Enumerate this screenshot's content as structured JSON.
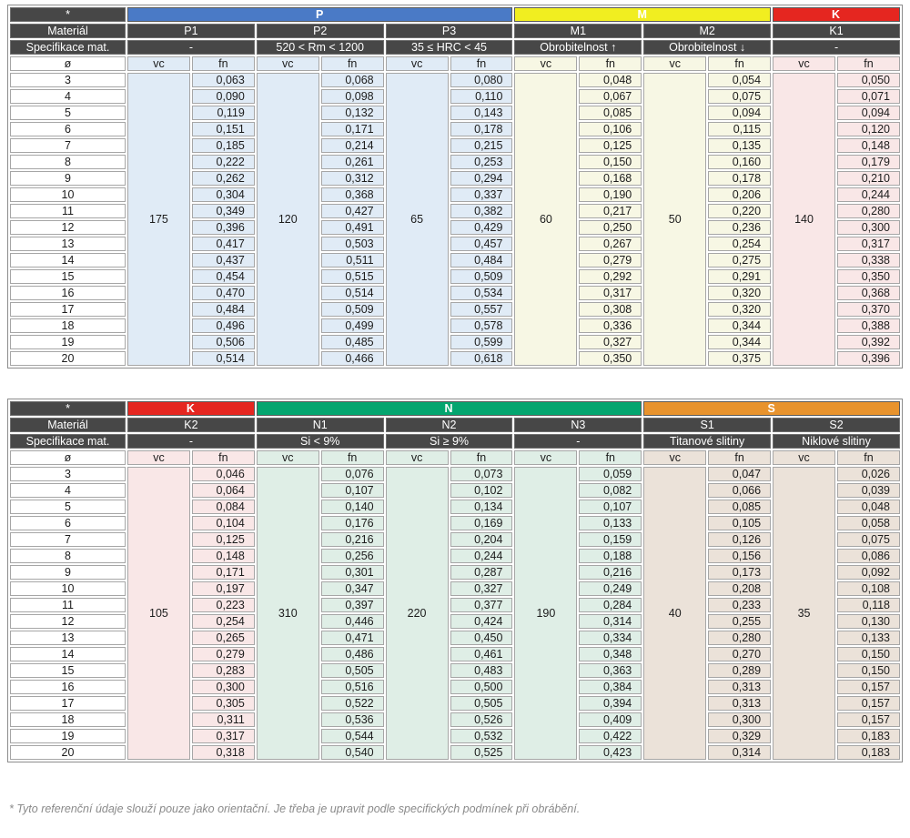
{
  "page": {
    "footnote": "* Tyto referenční údaje slouží pouze jako orientační. Je třeba je upravit podle specifických podmínek při obrábění."
  },
  "labels": {
    "star": "*",
    "material": "Materiál",
    "spec": "Specifikace mat.",
    "diameter": "ø",
    "vc": "vc",
    "fn": "fn"
  },
  "colors": {
    "header_dark": "#474747",
    "group_P": "#4a7ac6",
    "group_M": "#f1ee20",
    "group_K": "#e52620",
    "group_N": "#04a56f",
    "group_S": "#e8932d",
    "tint_P": "#e0ebf6",
    "tint_M": "#f7f7e4",
    "tint_K": "#f9e7e7",
    "tint_N": "#dfeee6",
    "tint_S": "#ebe2d9"
  },
  "tables": [
    {
      "groups": [
        {
          "label": "P",
          "color": "#4a7ac6",
          "cols": 3
        },
        {
          "label": "M",
          "color": "#f1ee20",
          "cols": 2
        },
        {
          "label": "K",
          "color": "#e52620",
          "cols": 1
        }
      ],
      "diameters": [
        "3",
        "4",
        "5",
        "6",
        "7",
        "8",
        "9",
        "10",
        "11",
        "12",
        "13",
        "14",
        "15",
        "16",
        "17",
        "18",
        "19",
        "20"
      ],
      "columns": [
        {
          "id": "P1",
          "spec": "-",
          "vc": "175",
          "tint": "#e0ebf6",
          "fn": [
            "0,063",
            "0,090",
            "0,119",
            "0,151",
            "0,185",
            "0,222",
            "0,262",
            "0,304",
            "0,349",
            "0,396",
            "0,417",
            "0,437",
            "0,454",
            "0,470",
            "0,484",
            "0,496",
            "0,506",
            "0,514"
          ]
        },
        {
          "id": "P2",
          "spec": "520 < Rm < 1200",
          "vc": "120",
          "tint": "#e0ebf6",
          "fn": [
            "0,068",
            "0,098",
            "0,132",
            "0,171",
            "0,214",
            "0,261",
            "0,312",
            "0,368",
            "0,427",
            "0,491",
            "0,503",
            "0,511",
            "0,515",
            "0,514",
            "0,509",
            "0,499",
            "0,485",
            "0,466"
          ]
        },
        {
          "id": "P3",
          "spec": "35 ≤ HRC < 45",
          "vc": "65",
          "tint": "#e0ebf6",
          "fn": [
            "0,080",
            "0,110",
            "0,143",
            "0,178",
            "0,215",
            "0,253",
            "0,294",
            "0,337",
            "0,382",
            "0,429",
            "0,457",
            "0,484",
            "0,509",
            "0,534",
            "0,557",
            "0,578",
            "0,599",
            "0,618"
          ]
        },
        {
          "id": "M1",
          "spec": "Obrobitelnost ↑",
          "vc": "60",
          "tint": "#f7f7e4",
          "fn": [
            "0,048",
            "0,067",
            "0,085",
            "0,106",
            "0,125",
            "0,150",
            "0,168",
            "0,190",
            "0,217",
            "0,250",
            "0,267",
            "0,279",
            "0,292",
            "0,317",
            "0,308",
            "0,336",
            "0,327",
            "0,350"
          ]
        },
        {
          "id": "M2",
          "spec": "Obrobitelnost ↓",
          "vc": "50",
          "tint": "#f7f7e4",
          "fn": [
            "0,054",
            "0,075",
            "0,094",
            "0,115",
            "0,135",
            "0,160",
            "0,178",
            "0,206",
            "0,220",
            "0,236",
            "0,254",
            "0,275",
            "0,291",
            "0,320",
            "0,320",
            "0,344",
            "0,344",
            "0,375"
          ]
        },
        {
          "id": "K1",
          "spec": "-",
          "vc": "140",
          "tint": "#f9e7e7",
          "fn": [
            "0,050",
            "0,071",
            "0,094",
            "0,120",
            "0,148",
            "0,179",
            "0,210",
            "0,244",
            "0,280",
            "0,300",
            "0,317",
            "0,338",
            "0,350",
            "0,368",
            "0,370",
            "0,388",
            "0,392",
            "0,396"
          ]
        }
      ]
    },
    {
      "groups": [
        {
          "label": "K",
          "color": "#e52620",
          "cols": 1
        },
        {
          "label": "N",
          "color": "#04a56f",
          "cols": 3
        },
        {
          "label": "S",
          "color": "#e8932d",
          "cols": 2
        }
      ],
      "diameters": [
        "3",
        "4",
        "5",
        "6",
        "7",
        "8",
        "9",
        "10",
        "11",
        "12",
        "13",
        "14",
        "15",
        "16",
        "17",
        "18",
        "19",
        "20"
      ],
      "columns": [
        {
          "id": "K2",
          "spec": "-",
          "vc": "105",
          "tint": "#f9e7e7",
          "fn": [
            "0,046",
            "0,064",
            "0,084",
            "0,104",
            "0,125",
            "0,148",
            "0,171",
            "0,197",
            "0,223",
            "0,254",
            "0,265",
            "0,279",
            "0,283",
            "0,300",
            "0,305",
            "0,311",
            "0,317",
            "0,318"
          ]
        },
        {
          "id": "N1",
          "spec": "Si < 9%",
          "vc": "310",
          "tint": "#dfeee6",
          "fn": [
            "0,076",
            "0,107",
            "0,140",
            "0,176",
            "0,216",
            "0,256",
            "0,301",
            "0,347",
            "0,397",
            "0,446",
            "0,471",
            "0,486",
            "0,505",
            "0,516",
            "0,522",
            "0,536",
            "0,544",
            "0,540"
          ]
        },
        {
          "id": "N2",
          "spec": "Si ≥ 9%",
          "vc": "220",
          "tint": "#dfeee6",
          "fn": [
            "0,073",
            "0,102",
            "0,134",
            "0,169",
            "0,204",
            "0,244",
            "0,287",
            "0,327",
            "0,377",
            "0,424",
            "0,450",
            "0,461",
            "0,483",
            "0,500",
            "0,505",
            "0,526",
            "0,532",
            "0,525"
          ]
        },
        {
          "id": "N3",
          "spec": "-",
          "vc": "190",
          "tint": "#dfeee6",
          "fn": [
            "0,059",
            "0,082",
            "0,107",
            "0,133",
            "0,159",
            "0,188",
            "0,216",
            "0,249",
            "0,284",
            "0,314",
            "0,334",
            "0,348",
            "0,363",
            "0,384",
            "0,394",
            "0,409",
            "0,422",
            "0,423"
          ]
        },
        {
          "id": "S1",
          "spec": "Titanové slitiny",
          "vc": "40",
          "tint": "#ebe2d9",
          "fn": [
            "0,047",
            "0,066",
            "0,085",
            "0,105",
            "0,126",
            "0,156",
            "0,173",
            "0,208",
            "0,233",
            "0,255",
            "0,280",
            "0,270",
            "0,289",
            "0,313",
            "0,313",
            "0,300",
            "0,329",
            "0,314"
          ]
        },
        {
          "id": "S2",
          "spec": "Niklové slitiny",
          "vc": "35",
          "tint": "#ebe2d9",
          "fn": [
            "0,026",
            "0,039",
            "0,048",
            "0,058",
            "0,075",
            "0,086",
            "0,092",
            "0,108",
            "0,118",
            "0,130",
            "0,133",
            "0,150",
            "0,150",
            "0,157",
            "0,157",
            "0,157",
            "0,183",
            "0,183"
          ]
        }
      ]
    }
  ]
}
